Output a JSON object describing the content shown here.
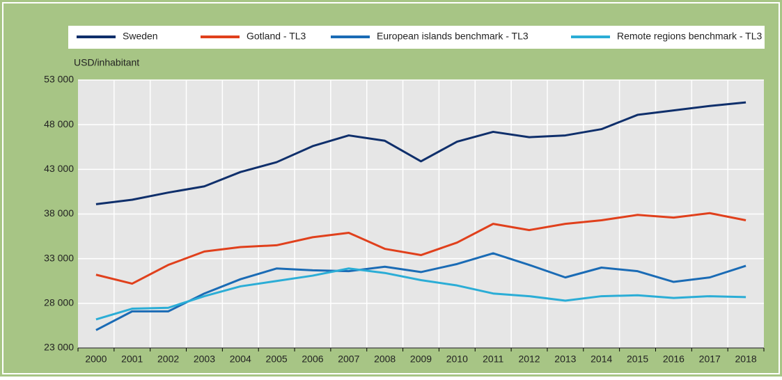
{
  "chart_data": {
    "type": "line",
    "y_label": "USD/inhabitant",
    "categories": [
      "2000",
      "2001",
      "2002",
      "2003",
      "2004",
      "2005",
      "2006",
      "2007",
      "2008",
      "2009",
      "2010",
      "2011",
      "2012",
      "2013",
      "2014",
      "2015",
      "2016",
      "2017",
      "2018"
    ],
    "series": [
      {
        "name": "Sweden",
        "color": "#0f2f6b",
        "values": [
          39100,
          39600,
          40400,
          41100,
          42700,
          43800,
          45600,
          46800,
          46200,
          43900,
          46100,
          47200,
          46600,
          46800,
          47500,
          49100,
          49600,
          50100,
          50500
        ]
      },
      {
        "name": "Gotland - TL3",
        "color": "#e0401c",
        "values": [
          31200,
          30200,
          32300,
          33800,
          34300,
          34500,
          35400,
          35900,
          34100,
          33400,
          34800,
          36900,
          36200,
          36900,
          37300,
          37900,
          37600,
          38100,
          37300
        ]
      },
      {
        "name": "European islands benchmark - TL3",
        "color": "#1a6bb5",
        "values": [
          25000,
          27100,
          27100,
          29100,
          30700,
          31900,
          31700,
          31600,
          32100,
          31500,
          32400,
          33600,
          32300,
          30900,
          32000,
          31600,
          30400,
          30900,
          32200
        ]
      },
      {
        "name": "Remote regions benchmark - TL3",
        "color": "#2badd6",
        "values": [
          26200,
          27400,
          27500,
          28800,
          29900,
          30500,
          31100,
          31900,
          31400,
          30600,
          30000,
          29100,
          28800,
          28300,
          28800,
          28900,
          28600,
          28800,
          28700
        ]
      }
    ],
    "ylim": [
      23000,
      53000
    ],
    "yticks": [
      {
        "value": 23000,
        "label": "23 000"
      },
      {
        "value": 28000,
        "label": "28 000"
      },
      {
        "value": 33000,
        "label": "33 000"
      },
      {
        "value": 38000,
        "label": "38 000"
      },
      {
        "value": 43000,
        "label": "43 000"
      },
      {
        "value": 48000,
        "label": "48 000"
      },
      {
        "value": 53000,
        "label": "53 000"
      }
    ],
    "grid": true
  }
}
